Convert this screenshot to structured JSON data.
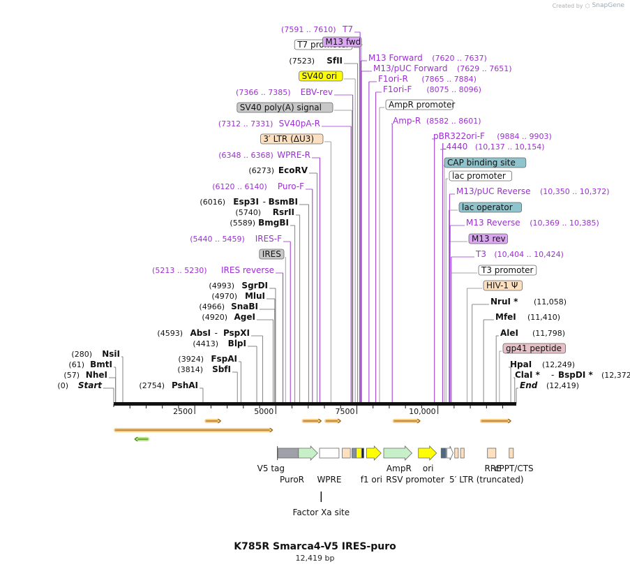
{
  "credit": {
    "text": "Created by",
    "brand": "SnapGene"
  },
  "map": {
    "title": "K785R Smarca4-V5 IRES-puro",
    "subtitle": "12,419 bp",
    "length": 12419
  },
  "colors": {
    "feature_purple": "#9b30d0",
    "enzyme_black": "#111111",
    "promoter_box": "#ffffff",
    "sv40ori": "#ffff00",
    "m13": "#d9a8f0",
    "grey_box": "#c8c8c8",
    "ltr": "#fde0c0",
    "cap_lacop": "#8fc4cc",
    "gp41": "#e8c0c8",
    "orange_arrow": "#f5a623",
    "green_arrow": "#7ed321"
  },
  "ruler": {
    "ticks": [
      "2500",
      "5000",
      "7500",
      "10,000"
    ]
  },
  "labels": [
    {
      "id": "start",
      "pos": 0,
      "coord": "(0)",
      "name": "Start",
      "kind": "special"
    },
    {
      "id": "nhei",
      "pos": 57,
      "coord": "(57)",
      "name": "NheI",
      "kind": "enzyme"
    },
    {
      "id": "bmti",
      "pos": 61,
      "coord": "(61)",
      "name": "BmtI",
      "kind": "enzyme"
    },
    {
      "id": "nsii",
      "pos": 280,
      "coord": "(280)",
      "name": "NsiI",
      "kind": "enzyme"
    },
    {
      "id": "pshai",
      "pos": 2754,
      "coord": "(2754)",
      "name": "PshAI",
      "kind": "enzyme"
    },
    {
      "id": "sbfi",
      "pos": 3814,
      "coord": "(3814)",
      "name": "SbfI",
      "kind": "enzyme"
    },
    {
      "id": "fspai",
      "pos": 3924,
      "coord": "(3924)",
      "name": "FspAI",
      "kind": "enzyme"
    },
    {
      "id": "bipi",
      "pos": 4413,
      "coord": "(4413)",
      "name": "BlpI",
      "kind": "enzyme"
    },
    {
      "id": "absi",
      "pos": 4593,
      "coord": "(4593)",
      "name": "AbsI",
      "kind": "enzyme2",
      "name2": "PspXI"
    },
    {
      "id": "agei",
      "pos": 4920,
      "coord": "(4920)",
      "name": "AgeI",
      "kind": "enzyme"
    },
    {
      "id": "snabi",
      "pos": 4966,
      "coord": "(4966)",
      "name": "SnaBI",
      "kind": "enzyme"
    },
    {
      "id": "mlui",
      "pos": 4970,
      "coord": "(4970)",
      "name": "MluI",
      "kind": "enzyme"
    },
    {
      "id": "sgrdi",
      "pos": 4993,
      "coord": "(4993)",
      "name": "SgrDI",
      "kind": "enzyme"
    },
    {
      "id": "iresrev",
      "pos": 5221,
      "coord": "(5213 .. 5230)",
      "name": "IRES reverse",
      "kind": "primer"
    },
    {
      "id": "ires",
      "pos": 5300,
      "name": "IRES",
      "kind": "box",
      "fill": "#c8c8c8"
    },
    {
      "id": "iresf",
      "pos": 5450,
      "coord": "(5440 .. 5459)",
      "name": "IRES-F",
      "kind": "primer"
    },
    {
      "id": "bmgbi",
      "pos": 5589,
      "coord": "(5589)",
      "name": "BmgBI",
      "kind": "enzyme"
    },
    {
      "id": "rsrii",
      "pos": 5740,
      "coord": "(5740)",
      "name": "RsrII",
      "kind": "enzyme"
    },
    {
      "id": "esp3i",
      "pos": 6016,
      "coord": "(6016)",
      "name": "Esp3I",
      "kind": "enzyme2",
      "name2": "BsmBI"
    },
    {
      "id": "purof",
      "pos": 6130,
      "coord": "(6120 .. 6140)",
      "name": "Puro-F",
      "kind": "primer"
    },
    {
      "id": "ecorv",
      "pos": 6273,
      "coord": "(6273)",
      "name": "EcoRV",
      "kind": "enzyme"
    },
    {
      "id": "wprer",
      "pos": 6358,
      "coord": "(6348 .. 6368)",
      "name": "WPRE-R",
      "kind": "primer"
    },
    {
      "id": "ltr3",
      "pos": 6700,
      "name": "3′ LTR (ΔU3)",
      "kind": "box",
      "fill": "#fde0c0"
    },
    {
      "id": "sv40par",
      "pos": 7321,
      "coord": "(7312 .. 7331)",
      "name": "SV40pA-R",
      "kind": "primer"
    },
    {
      "id": "sv40polya",
      "pos": 7350,
      "name": "SV40 poly(A) signal",
      "kind": "box",
      "fill": "#c8c8c8"
    },
    {
      "id": "ebvrev",
      "pos": 7375,
      "coord": "(7366 .. 7385)",
      "name": "EBV-rev",
      "kind": "primer"
    },
    {
      "id": "sv40ori",
      "pos": 7450,
      "name": "SV40 ori",
      "kind": "box",
      "fill": "#ffff00"
    },
    {
      "id": "sfii",
      "pos": 7523,
      "coord": "(7523)",
      "name": "SfII",
      "kind": "enzyme"
    },
    {
      "id": "t7prom",
      "pos": 7580,
      "name": "T7 promoter",
      "kind": "box",
      "fill": "#ffffff"
    },
    {
      "id": "t7",
      "pos": 7600,
      "coord": "(7591 .. 7610)",
      "name": "T7",
      "kind": "primer"
    },
    {
      "id": "m13fwd",
      "pos": 7640,
      "name": "M13 fwd",
      "kind": "box",
      "fill": "#d9a8f0"
    },
    {
      "id": "m13forward",
      "pos": 7628,
      "name": "M13 Forward",
      "coord": "(7620 .. 7637)",
      "kind": "primerR"
    },
    {
      "id": "m13puc",
      "pos": 7640,
      "name": "M13/pUC Forward",
      "coord": "(7629 .. 7651)",
      "kind": "primerR"
    },
    {
      "id": "f1orir",
      "pos": 7875,
      "name": "F1ori-R",
      "coord": "(7865 .. 7884)",
      "kind": "primerR"
    },
    {
      "id": "f1orif",
      "pos": 8085,
      "name": "F1ori-F",
      "coord": "(8075 .. 8096)",
      "kind": "primerR"
    },
    {
      "id": "amprprom",
      "pos": 8200,
      "name": "AmpR promoter",
      "kind": "boxR",
      "fill": "#ffffff"
    },
    {
      "id": "ampr",
      "pos": 8592,
      "name": "Amp-R",
      "coord": "(8582 .. 8601)",
      "kind": "primerR"
    },
    {
      "id": "pbr322",
      "pos": 9894,
      "name": "pBR322ori-F",
      "coord": "(9884 .. 9903)",
      "kind": "primerR"
    },
    {
      "id": "l4440",
      "pos": 10146,
      "name": "L4440",
      "coord": "(10,137 .. 10,154)",
      "kind": "primerR"
    },
    {
      "id": "cap",
      "pos": 10200,
      "name": "CAP binding site",
      "kind": "boxR",
      "fill": "#8fc4cc"
    },
    {
      "id": "lacprom",
      "pos": 10250,
      "name": "lac promoter",
      "kind": "boxR",
      "fill": "#ffffff"
    },
    {
      "id": "m13pucrev",
      "pos": 10361,
      "name": "M13/pUC Reverse",
      "coord": "(10,350 .. 10,372)",
      "kind": "primerR"
    },
    {
      "id": "lacop",
      "pos": 10340,
      "name": "lac operator",
      "kind": "boxR",
      "fill": "#8fc4cc"
    },
    {
      "id": "m13reverse",
      "pos": 10377,
      "name": "M13 Reverse",
      "coord": "(10,369 .. 10,385)",
      "kind": "primerR"
    },
    {
      "id": "m13rev",
      "pos": 10380,
      "name": "M13 rev",
      "kind": "boxR",
      "fill": "#d9a8f0"
    },
    {
      "id": "t3",
      "pos": 10414,
      "name": "T3",
      "coord": "(10,404 .. 10,424)",
      "kind": "primerR"
    },
    {
      "id": "t3prom",
      "pos": 10420,
      "name": "T3 promoter",
      "kind": "boxR",
      "fill": "#ffffff"
    },
    {
      "id": "hivpsi",
      "pos": 10900,
      "name": "HIV-1 Ψ",
      "kind": "boxR",
      "fill": "#fde0c0"
    },
    {
      "id": "nrui",
      "pos": 11058,
      "name": "NruI *",
      "coord": "(11,058)",
      "kind": "enzymeR"
    },
    {
      "id": "mfei",
      "pos": 11410,
      "name": "MfeI",
      "coord": "(11,410)",
      "kind": "enzymeR"
    },
    {
      "id": "alei",
      "pos": 11798,
      "name": "AleI",
      "coord": "(11,798)",
      "kind": "enzymeR"
    },
    {
      "id": "gp41",
      "pos": 11900,
      "name": "gp41 peptide",
      "kind": "boxR",
      "fill": "#e8c0c8"
    },
    {
      "id": "hpai",
      "pos": 12249,
      "name": "HpaI",
      "coord": "(12,249)",
      "kind": "enzymeR"
    },
    {
      "id": "clai",
      "pos": 12372,
      "name": "ClaI *",
      "name2": "BspDI *",
      "coord": "(12,372)",
      "kind": "enzyme2R"
    },
    {
      "id": "end",
      "pos": 12419,
      "name": "End",
      "coord": "(12,419)",
      "kind": "specialR"
    }
  ],
  "orfs": [
    {
      "start": 2800,
      "end": 3300,
      "dir": "fwd",
      "row": 0,
      "color": "#f5a623"
    },
    {
      "start": 5800,
      "end": 6400,
      "dir": "fwd",
      "row": 0,
      "color": "#f5a623"
    },
    {
      "start": 6500,
      "end": 7000,
      "dir": "fwd",
      "row": 0,
      "color": "#f5a623"
    },
    {
      "start": 8600,
      "end": 9450,
      "dir": "fwd",
      "row": 0,
      "color": "#f5a623"
    },
    {
      "start": 11300,
      "end": 12250,
      "dir": "fwd",
      "row": 0,
      "color": "#f5a623"
    },
    {
      "start": 0,
      "end": 4900,
      "dir": "fwd",
      "row": 1,
      "color": "#f5a623"
    },
    {
      "start": 650,
      "end": 1100,
      "dir": "rev",
      "row": 2,
      "color": "#7ed321"
    }
  ],
  "features": [
    {
      "id": "f-v5",
      "start": 5050,
      "end": 5060,
      "shape": "line",
      "color": "#444444"
    },
    {
      "id": "f-puro-grey",
      "start": 5070,
      "end": 5700,
      "shape": "box",
      "color": "#a0a0a8"
    },
    {
      "id": "f-puror",
      "start": 5700,
      "end": 6290,
      "shape": "arrow",
      "color": "#c8f0c8"
    },
    {
      "id": "f-wpre",
      "start": 6350,
      "end": 6950,
      "shape": "box",
      "color": "#ffffff"
    },
    {
      "id": "f-ltr3",
      "start": 7050,
      "end": 7300,
      "shape": "box",
      "color": "#fde0c0"
    },
    {
      "id": "f-sv40pa",
      "start": 7350,
      "end": 7480,
      "shape": "box",
      "color": "#8090a0"
    },
    {
      "id": "f-sv40ori",
      "start": 7480,
      "end": 7650,
      "shape": "box",
      "color": "#ffff00"
    },
    {
      "id": "f-t7",
      "start": 7650,
      "end": 7700,
      "shape": "box",
      "color": "#1a2040"
    },
    {
      "id": "f-f1ori",
      "start": 7800,
      "end": 8250,
      "shape": "arrow",
      "color": "#ffff00"
    },
    {
      "id": "f-ampr",
      "start": 8330,
      "end": 9200,
      "shape": "arrow",
      "color": "#c8f0c8"
    },
    {
      "id": "f-ori",
      "start": 9400,
      "end": 9960,
      "shape": "arrow",
      "color": "#ffff00"
    },
    {
      "id": "f-lac",
      "start": 10100,
      "end": 10250,
      "shape": "box",
      "color": "#506880"
    },
    {
      "id": "f-lacp",
      "start": 10280,
      "end": 10470,
      "shape": "arrow",
      "color": "#ffffff"
    },
    {
      "id": "f-5ltr",
      "start": 10520,
      "end": 10630,
      "shape": "box",
      "color": "#fde0c0"
    },
    {
      "id": "f-5ltr2",
      "start": 10700,
      "end": 10810,
      "shape": "box",
      "color": "#fde0c0"
    },
    {
      "id": "f-rre",
      "start": 11530,
      "end": 11790,
      "shape": "box",
      "color": "#fde0c0"
    },
    {
      "id": "f-cppt",
      "start": 12200,
      "end": 12330,
      "shape": "box",
      "color": "#fde0c0"
    }
  ],
  "feature_labels": [
    {
      "text": "V5 tag",
      "pos": 4850,
      "row": 0
    },
    {
      "text": "PuroR",
      "pos": 5500,
      "row": 1
    },
    {
      "text": "WPRE",
      "pos": 6650,
      "row": 1
    },
    {
      "text": "f1 ori",
      "pos": 7950,
      "row": 1
    },
    {
      "text": "AmpR",
      "pos": 8800,
      "row": 0
    },
    {
      "text": "ori",
      "pos": 9700,
      "row": 0
    },
    {
      "text": "RSV promoter",
      "pos": 9300,
      "row": 1
    },
    {
      "text": "RRE",
      "pos": 11700,
      "row": 0
    },
    {
      "text": "cPPT/CTS",
      "pos": 12350,
      "row": 0
    },
    {
      "text": "5′ LTR (truncated)",
      "pos": 11500,
      "row": 1
    }
  ],
  "factor_xa": {
    "text": "Factor Xa site",
    "pos": 6400
  }
}
